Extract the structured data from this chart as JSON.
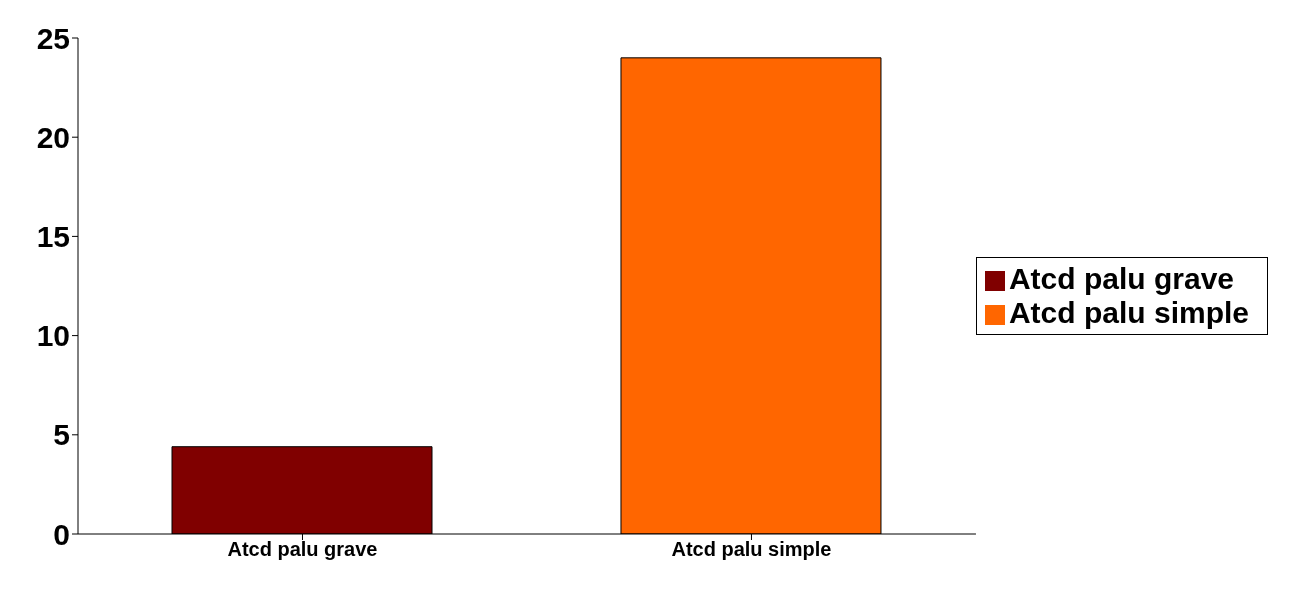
{
  "chart_data": {
    "type": "bar",
    "categories": [
      "Atcd palu grave",
      "Atcd palu simple"
    ],
    "series": [
      {
        "name": "Atcd palu grave",
        "color": "#800000",
        "values": [
          4.4,
          null
        ]
      },
      {
        "name": "Atcd palu simple",
        "color": "#ff6600",
        "values": [
          null,
          24
        ]
      }
    ],
    "ylim": [
      0,
      25
    ],
    "yticks": [
      0,
      5,
      10,
      15,
      20,
      25
    ],
    "legend": "right"
  }
}
